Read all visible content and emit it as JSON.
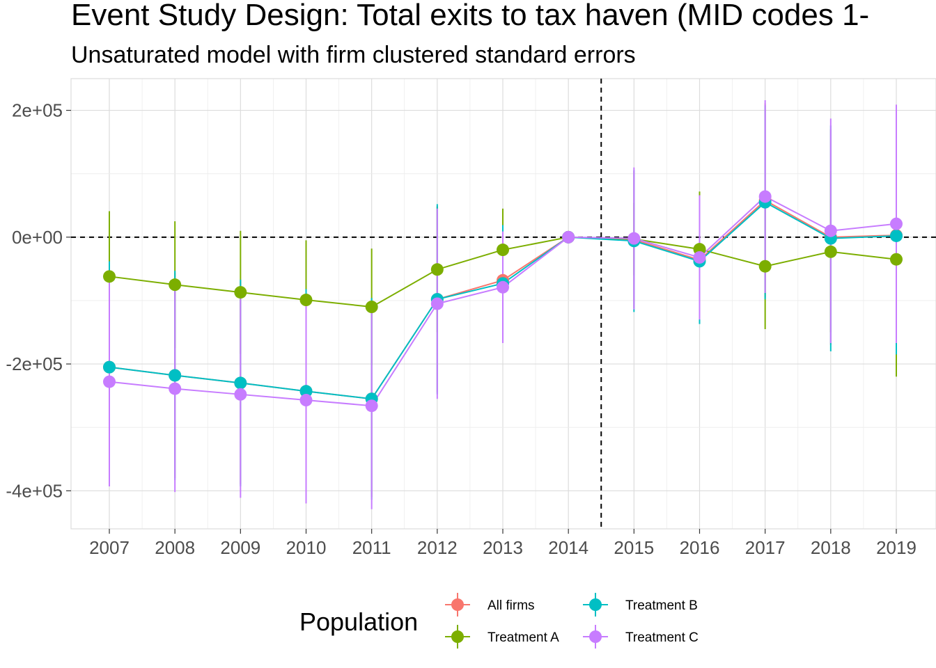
{
  "chart_data": {
    "type": "line",
    "title": "Event Study Design: Total exits to tax haven (MID codes 1-",
    "subtitle": "Unsaturated model with firm clustered standard errors",
    "xlabel": "",
    "ylabel": "",
    "x": [
      "2007",
      "2008",
      "2009",
      "2010",
      "2011",
      "2012",
      "2013",
      "2014",
      "2015",
      "2016",
      "2017",
      "2018",
      "2019"
    ],
    "ylim": [
      -460000,
      250000
    ],
    "y_ticks": [
      200000,
      0,
      -200000,
      -400000
    ],
    "y_tick_labels": [
      "2e+05",
      "0e+00",
      "-2e+05",
      "-4e+05"
    ],
    "reference_lines": {
      "horizontal_y": 0,
      "vertical_between": [
        "2014",
        "2015"
      ]
    },
    "grid": true,
    "legend": {
      "title": "Population",
      "placement": "bottom",
      "entries": [
        "All firms",
        "Treatment A",
        "Treatment B",
        "Treatment C"
      ]
    },
    "series": [
      {
        "name": "All firms",
        "color": "#F8766D",
        "values": [
          -205000,
          -218000,
          -230000,
          -243000,
          -255000,
          -98000,
          -68000,
          0,
          -4000,
          -36000,
          58000,
          0,
          3000
        ],
        "lower": [
          -370000,
          -380000,
          -390000,
          -400000,
          -410000,
          -245000,
          -160000,
          0,
          -112000,
          -132000,
          -95000,
          -170000,
          -180000
        ],
        "upper": [
          -40000,
          -56000,
          -70000,
          -86000,
          -100000,
          49000,
          24000,
          0,
          104000,
          60000,
          211000,
          170000,
          186000
        ]
      },
      {
        "name": "Treatment A",
        "color": "#7CAE00",
        "values": [
          -62000,
          -75000,
          -87000,
          -99000,
          -110000,
          -51000,
          -20000,
          0,
          -3000,
          -19000,
          -46000,
          -23000,
          -35000
        ],
        "lower": [
          -165000,
          -175000,
          -184000,
          -193000,
          -202000,
          -150000,
          -85000,
          0,
          -60000,
          -110000,
          -145000,
          -150000,
          -220000
        ],
        "upper": [
          41000,
          25000,
          10000,
          -5000,
          -18000,
          48000,
          45000,
          0,
          54000,
          72000,
          53000,
          104000,
          150000
        ]
      },
      {
        "name": "Treatment B",
        "color": "#00BFC4",
        "values": [
          -205000,
          -218000,
          -230000,
          -243000,
          -255000,
          -98000,
          -73000,
          0,
          -6000,
          -38000,
          55000,
          -2000,
          2000
        ],
        "lower": [
          -372000,
          -383000,
          -393000,
          -404000,
          -414000,
          -248000,
          -165000,
          0,
          -118000,
          -137000,
          -98000,
          -180000,
          -185000
        ],
        "upper": [
          -38000,
          -53000,
          -67000,
          -82000,
          -96000,
          52000,
          19000,
          0,
          106000,
          61000,
          208000,
          176000,
          189000
        ]
      },
      {
        "name": "Treatment C",
        "color": "#C77CFF",
        "values": [
          -228000,
          -239000,
          -248000,
          -257000,
          -266000,
          -105000,
          -79000,
          0,
          -2000,
          -32000,
          64000,
          10000,
          21000
        ],
        "lower": [
          -393000,
          -402000,
          -411000,
          -420000,
          -429000,
          -255000,
          -167000,
          0,
          -114000,
          -130000,
          -88000,
          -167000,
          -167000
        ],
        "upper": [
          -63000,
          -76000,
          -85000,
          -94000,
          -103000,
          45000,
          9000,
          0,
          110000,
          66000,
          216000,
          187000,
          209000
        ]
      }
    ]
  }
}
